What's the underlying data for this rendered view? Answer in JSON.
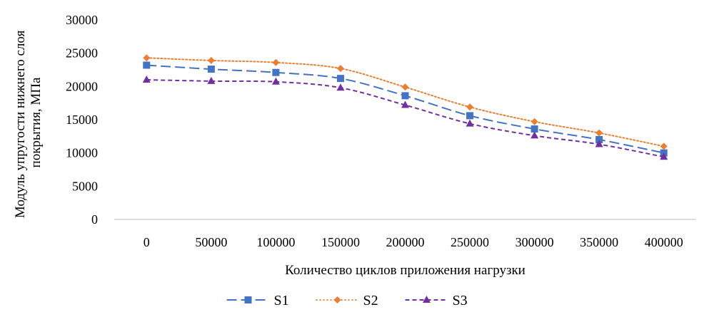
{
  "chart_data": {
    "type": "line",
    "title": "",
    "xlabel": "Количество циклов приложения нагрузки",
    "ylabel_lines": [
      "Модуль упругости нижнего слоя",
      "покрытия, МПа"
    ],
    "x": [
      "0",
      "50000",
      "100000",
      "150000",
      "200000",
      "250000",
      "300000",
      "350000",
      "400000"
    ],
    "ylim": [
      0,
      30000
    ],
    "yticks": [
      "0",
      "5000",
      "10000",
      "15000",
      "20000",
      "25000",
      "30000"
    ],
    "grid": false,
    "legend_position": "bottom",
    "series": [
      {
        "name": "S1",
        "color": "#4472C4",
        "dash": "dashed",
        "marker": "square",
        "values": [
          23200,
          22600,
          22100,
          21200,
          18600,
          15600,
          13600,
          12000,
          10000
        ]
      },
      {
        "name": "S2",
        "color": "#ED7D31",
        "dash": "dotted",
        "marker": "diamond",
        "values": [
          24300,
          23900,
          23600,
          22700,
          19900,
          16900,
          14700,
          13000,
          11000
        ]
      },
      {
        "name": "S3",
        "color": "#7030A0",
        "dash": "short-dashed",
        "marker": "triangle",
        "values": [
          21000,
          20800,
          20700,
          19800,
          17200,
          14400,
          12600,
          11300,
          9400
        ]
      }
    ]
  }
}
